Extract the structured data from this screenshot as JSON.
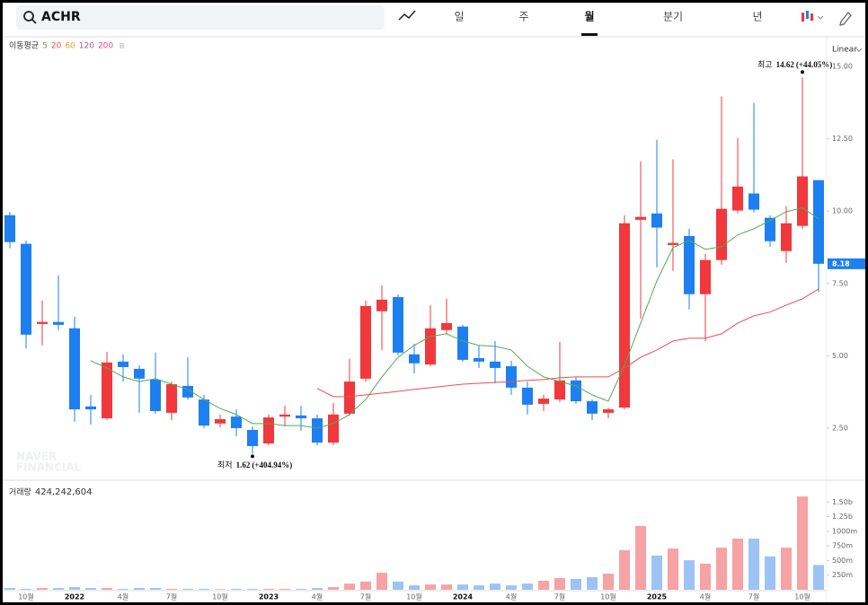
{
  "header": {
    "search": "ACHR",
    "tabs": [
      "일",
      "주",
      "월",
      "분기",
      "년"
    ]
  },
  "chart_data": [
    {
      "type": "candlestick",
      "scale": "Linear",
      "ma_title": "이동평균",
      "moving_averages": [
        {
          "name": "5",
          "color": "#4caf50",
          "values": [
            null,
            null,
            null,
            null,
            null,
            4.83,
            4.58,
            4.27,
            4.11,
            4.21,
            4.02,
            3.84,
            3.49,
            3.18,
            2.97,
            2.66,
            2.66,
            2.59,
            2.59,
            2.5,
            2.66,
            2.97,
            3.49,
            4.27,
            4.95,
            5.36,
            5.67,
            5.76,
            5.51,
            5.36,
            5.33,
            5.2,
            4.64,
            4.27,
            4.11,
            3.96,
            3.65,
            3.43,
            4.67,
            6.13,
            7.59,
            8.74,
            8.99,
            8.68,
            8.77,
            9.18,
            9.39,
            9.67,
            9.98,
            10.11,
            9.74
          ]
        },
        {
          "name": "20",
          "color": "#e8504f",
          "values": [
            null,
            null,
            null,
            null,
            null,
            null,
            null,
            null,
            null,
            null,
            null,
            null,
            null,
            null,
            null,
            null,
            null,
            null,
            null,
            3.87,
            3.59,
            3.59,
            3.65,
            3.71,
            3.77,
            3.84,
            3.9,
            3.96,
            4.02,
            4.05,
            4.08,
            4.11,
            4.15,
            4.18,
            4.24,
            4.27,
            4.27,
            4.27,
            4.58,
            4.95,
            5.2,
            5.51,
            5.61,
            5.61,
            5.76,
            6.13,
            6.38,
            6.51,
            6.75,
            6.97,
            7.31
          ]
        },
        {
          "name": "60",
          "color": "#f39c12"
        },
        {
          "name": "120",
          "color": "#9b59b6"
        },
        {
          "name": "200",
          "color": "#e84393"
        }
      ],
      "up_color": "#f0383d",
      "down_color": "#1e7ff0",
      "open": [
        9.86,
        8.87,
        6.1,
        6.17,
        5.95,
        3.25,
        2.84,
        4.8,
        4.55,
        4.18,
        3.03,
        3.96,
        3.49,
        2.66,
        2.9,
        2.44,
        1.97,
        2.9,
        2.94,
        2.84,
        2.0,
        3.0,
        4.21,
        6.54,
        7.03,
        5.05,
        4.7,
        5.89,
        6.01,
        4.92,
        4.8,
        4.64,
        3.9,
        3.34,
        3.49,
        4.15,
        3.43,
        3.03,
        3.21,
        9.7,
        9.92,
        8.83,
        9.14,
        7.13,
        8.31,
        10.02,
        10.61,
        9.77,
        8.62,
        9.49,
        11.07
      ],
      "high": [
        9.97,
        8.99,
        6.91,
        7.78,
        6.35,
        3.65,
        5.14,
        5.05,
        4.67,
        5.11,
        4.11,
        4.95,
        3.65,
        2.97,
        3.15,
        2.56,
        2.97,
        3.28,
        3.28,
        2.97,
        3.37,
        4.89,
        6.91,
        7.44,
        7.13,
        5.42,
        6.75,
        6.97,
        6.07,
        5.36,
        5.51,
        4.83,
        4.11,
        3.65,
        5.48,
        4.27,
        3.49,
        3.21,
        9.86,
        11.72,
        12.47,
        11.79,
        9.39,
        8.52,
        13.96,
        12.53,
        13.74,
        9.86,
        10.17,
        14.62,
        11.07
      ],
      "low": [
        8.71,
        5.26,
        5.36,
        5.89,
        2.72,
        2.62,
        2.78,
        4.11,
        3.03,
        3.0,
        2.78,
        3.49,
        2.5,
        2.53,
        2.22,
        1.62,
        1.91,
        2.56,
        2.41,
        1.91,
        1.91,
        2.93,
        4.11,
        5.2,
        5.02,
        4.39,
        4.64,
        5.76,
        4.8,
        4.58,
        4.05,
        3.65,
        2.97,
        3.09,
        3.4,
        3.34,
        2.78,
        2.84,
        3.15,
        6.29,
        8.06,
        7.93,
        6.6,
        5.51,
        8.15,
        9.92,
        9.95,
        8.77,
        8.21,
        9.39,
        7.2
      ],
      "close": [
        8.93,
        5.73,
        6.17,
        6.07,
        3.15,
        3.15,
        4.77,
        4.61,
        4.21,
        3.09,
        4.02,
        3.56,
        2.59,
        2.81,
        2.5,
        1.88,
        2.87,
        2.97,
        2.84,
        2.0,
        2.97,
        4.11,
        6.72,
        6.94,
        5.11,
        4.74,
        5.95,
        6.13,
        4.86,
        4.8,
        4.58,
        3.9,
        3.31,
        3.52,
        4.15,
        3.43,
        3.0,
        3.15,
        9.58,
        9.8,
        9.43,
        8.9,
        7.13,
        8.31,
        10.08,
        10.85,
        10.05,
        8.96,
        9.58,
        11.2,
        8.18
      ],
      "ylim": [
        0.7,
        15.9
      ],
      "yticks": [
        {
          "value": 2.5,
          "label": "2.50"
        },
        {
          "value": 5,
          "label": "5.00"
        },
        {
          "value": 7.5,
          "label": "7.50"
        },
        {
          "value": 10,
          "label": "10.00"
        },
        {
          "value": 12.5,
          "label": "12.50"
        },
        {
          "value": 15,
          "label": "15.00"
        }
      ],
      "high_annotation": {
        "label": "최고",
        "value": 14.62,
        "change": "(+44.05%)"
      },
      "low_annotation": {
        "label": "최저",
        "value": 1.62,
        "change": "(+404.94%)"
      },
      "watermark": [
        "NAVER",
        "FINANCIAL"
      ]
    },
    {
      "type": "bar",
      "title": "거래량",
      "total": "424,242,604",
      "up_color": "#f5a3a5",
      "down_color": "#9dc3f4",
      "categories": [
        null,
        "10월",
        null,
        null,
        "2022",
        null,
        null,
        "4월",
        null,
        null,
        "7월",
        null,
        null,
        "10월",
        null,
        null,
        "2023",
        null,
        null,
        "4월",
        null,
        null,
        "7월",
        null,
        null,
        "10월",
        null,
        null,
        "2024",
        null,
        null,
        "4월",
        null,
        null,
        "7월",
        null,
        null,
        "10월",
        null,
        null,
        "2025",
        null,
        null,
        "4월",
        null,
        null,
        "7월",
        null,
        null,
        "10월",
        null
      ],
      "values": [
        30,
        15,
        30,
        30,
        45,
        30,
        30,
        15,
        30,
        30,
        15,
        15,
        15,
        10,
        15,
        15,
        15,
        15,
        15,
        30,
        45,
        105,
        140,
        290,
        140,
        75,
        90,
        90,
        90,
        75,
        105,
        75,
        105,
        155,
        200,
        185,
        215,
        275,
        675,
        1090,
        585,
        705,
        505,
        445,
        720,
        875,
        875,
        570,
        720,
        1595,
        424.24
      ],
      "ylim": [
        0,
        1720
      ],
      "yticks": [
        {
          "value": 250,
          "label": "250m"
        },
        {
          "value": 500,
          "label": "500m"
        },
        {
          "value": 750,
          "label": "750m"
        },
        {
          "value": 1000,
          "label": "1000m"
        },
        {
          "value": 1250,
          "label": "1.25b"
        },
        {
          "value": 1500,
          "label": "1.50b"
        }
      ]
    }
  ]
}
